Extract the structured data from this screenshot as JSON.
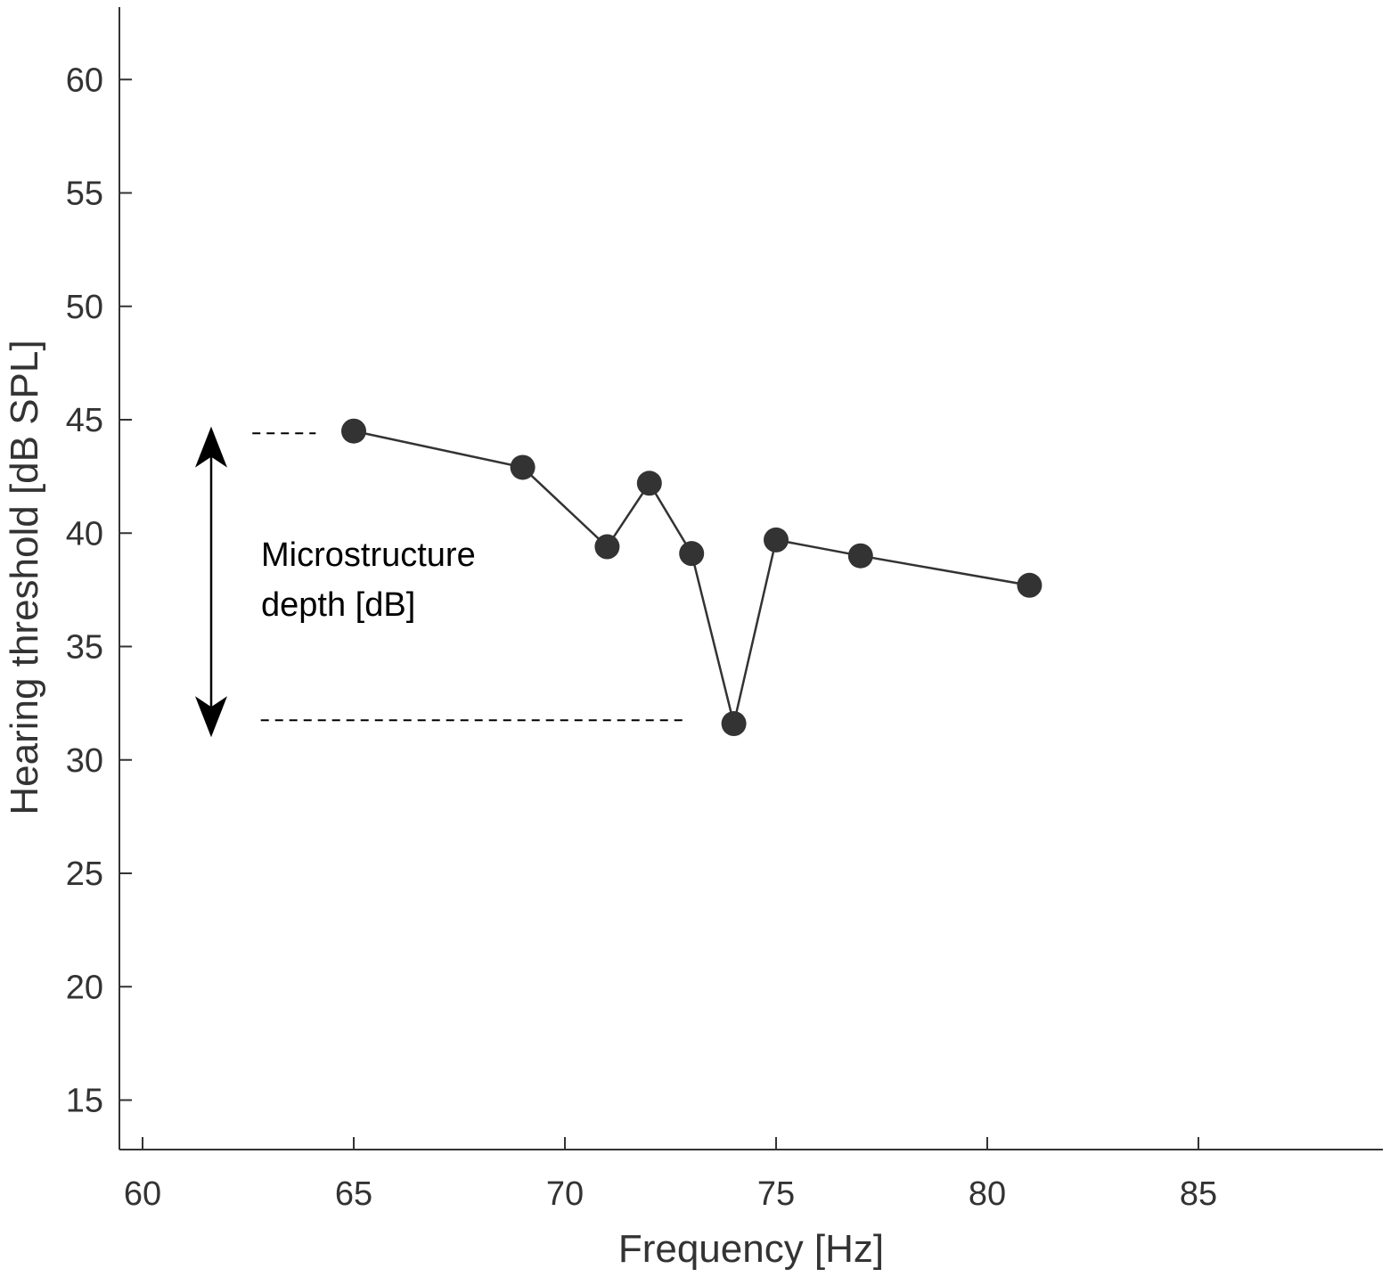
{
  "chart_data": {
    "type": "line",
    "title": "",
    "xlabel": "Frequency [Hz]",
    "ylabel": "Hearing threshold [dB SPL]",
    "xlim": [
      59.5,
      89
    ],
    "ylim": [
      12.8,
      63.2
    ],
    "xticks": [
      60,
      65,
      70,
      75,
      80,
      85
    ],
    "yticks": [
      15,
      20,
      25,
      30,
      35,
      40,
      45,
      50,
      55,
      60
    ],
    "grid": false,
    "series": [
      {
        "x": [
          65,
          69,
          71,
          72,
          73,
          74,
          75,
          77,
          81
        ],
        "y": [
          44.5,
          42.9,
          39.4,
          42.2,
          39.1,
          31.6,
          39.7,
          39.0,
          37.7
        ]
      }
    ],
    "annotation": {
      "lines": [
        "Microstructure",
        "depth [dB]"
      ],
      "arrow_from": 44.7,
      "arrow_to": 31.0,
      "upper_ref": {
        "x_from": 62.6,
        "x_to": 64.1,
        "y": 44.4
      },
      "lower_ref": {
        "x_from": 62.8,
        "x_to": 72.8,
        "y": 31.75
      }
    },
    "colors": {
      "line": "#333333",
      "marker": "#333333",
      "axis": "#333333",
      "annotation": "#000000"
    }
  }
}
